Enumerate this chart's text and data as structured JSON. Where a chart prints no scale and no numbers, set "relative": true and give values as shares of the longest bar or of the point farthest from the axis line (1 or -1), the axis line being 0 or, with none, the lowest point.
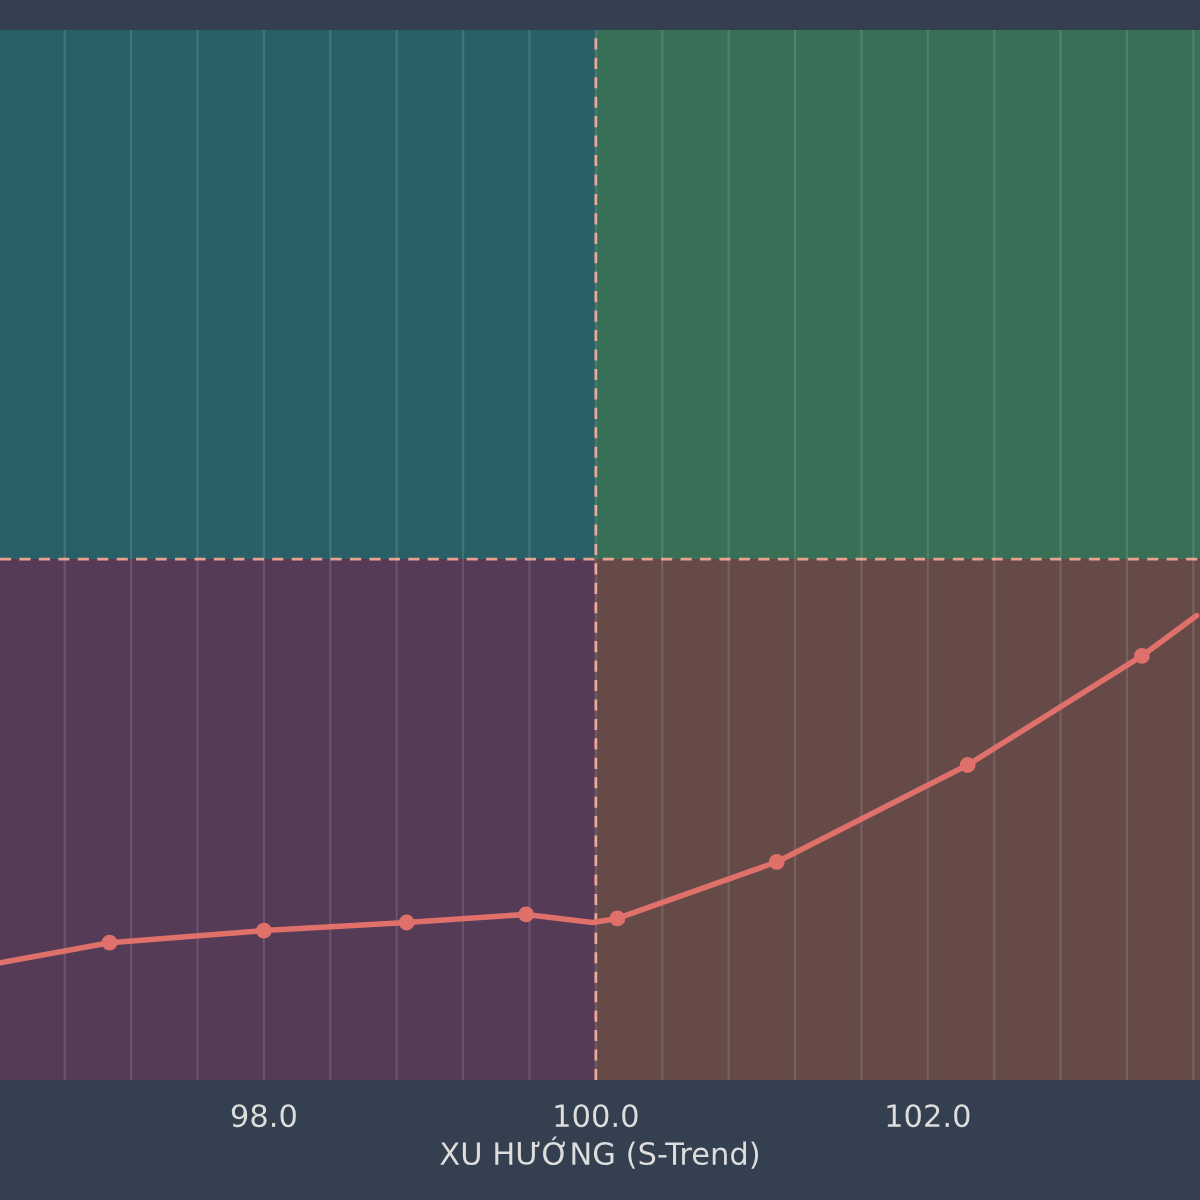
{
  "chart_data": {
    "type": "line",
    "xlabel": "XU HƯỚNG (S-Trend)",
    "relative": true,
    "xlim": [
      96.41,
      103.64
    ],
    "xticks": [
      {
        "value": 96.8,
        "label": null
      },
      {
        "value": 97.2,
        "label": null
      },
      {
        "value": 97.6,
        "label": null
      },
      {
        "value": 98,
        "label": "98.0"
      },
      {
        "value": 98.4,
        "label": null
      },
      {
        "value": 98.8,
        "label": null
      },
      {
        "value": 99.2,
        "label": null
      },
      {
        "value": 99.6,
        "label": null
      },
      {
        "value": 100,
        "label": "100.0"
      },
      {
        "value": 100.4,
        "label": null
      },
      {
        "value": 100.8,
        "label": null
      },
      {
        "value": 101.2,
        "label": null
      },
      {
        "value": 101.6,
        "label": null
      },
      {
        "value": 102,
        "label": "102.0"
      },
      {
        "value": 102.4,
        "label": null
      },
      {
        "value": 102.8,
        "label": null
      },
      {
        "value": 103.2,
        "label": null
      },
      {
        "value": 103.6,
        "label": null
      }
    ],
    "series": [
      {
        "color": "#e0706a",
        "marker": "none",
        "x": [
          96.41,
          97.07,
          98.0,
          98.86,
          99.58,
          99.98,
          100.13,
          101.09,
          102.24,
          103.29,
          103.62
        ],
        "values": [
          -1.0,
          -0.95,
          -0.92,
          -0.9,
          -0.88,
          -0.9,
          -0.89,
          -0.75,
          -0.51,
          -0.24,
          -0.14
        ]
      },
      {
        "type": "scatter",
        "color": "#e0706a",
        "marker": "circle",
        "x": [
          97.07,
          98.0,
          98.86,
          99.58,
          100.13,
          101.09,
          102.24,
          103.29
        ],
        "values": [
          -0.95,
          -0.92,
          -0.9,
          -0.88,
          -0.89,
          -0.75,
          -0.51,
          -0.24
        ]
      }
    ],
    "ref_lines": [
      {
        "axis": "x",
        "value": 100,
        "color": "#e8a090",
        "line_style": "dashed"
      },
      {
        "axis": "y",
        "value": 0,
        "color": "#e8a090",
        "line_style": "dashed"
      }
    ],
    "bands": [
      {
        "axis": "x",
        "from": 96.41,
        "to": 100,
        "color": "#2f4c7a"
      },
      {
        "axis": "x",
        "from": 100,
        "to": 103.64,
        "color": "#6e8a3a"
      },
      {
        "axis": "y",
        "from": 0,
        "to": 1.31,
        "color": "#1f7a6a"
      },
      {
        "axis": "y",
        "from": -1.29,
        "to": 0,
        "color": "#7a2f4a"
      }
    ],
    "grid": "x",
    "legend": false
  }
}
